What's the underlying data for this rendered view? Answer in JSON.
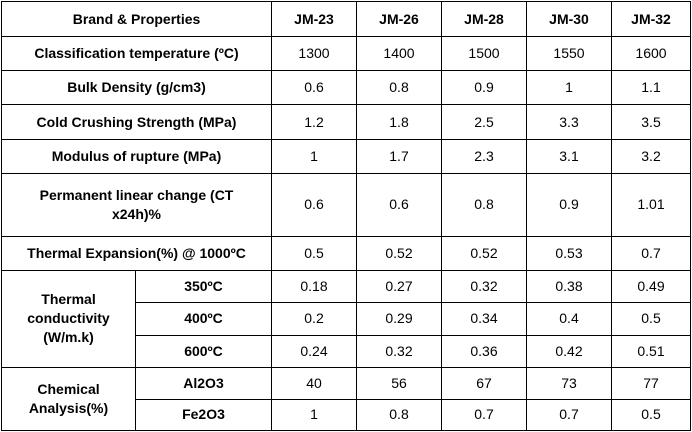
{
  "header": {
    "label": "Brand & Properties",
    "brands": [
      "JM-23",
      "JM-26",
      "JM-28",
      "JM-30",
      "JM-32"
    ]
  },
  "rows": [
    {
      "label": "Classification temperature (ºC)",
      "values": [
        "1300",
        "1400",
        "1500",
        "1550",
        "1600"
      ]
    },
    {
      "label": "Bulk Density (g/cm3)",
      "values": [
        "0.6",
        "0.8",
        "0.9",
        "1",
        "1.1"
      ]
    },
    {
      "label": "Cold Crushing Strength (MPa)",
      "values": [
        "1.2",
        "1.8",
        "2.5",
        "3.3",
        "3.5"
      ]
    },
    {
      "label": "Modulus of rupture (MPa)",
      "values": [
        "1",
        "1.7",
        "2.3",
        "3.1",
        "3.2"
      ]
    },
    {
      "label_line1": "Permanent linear change (CT",
      "label_line2": "x24h)%",
      "values": [
        "0.6",
        "0.6",
        "0.8",
        "0.9",
        "1.01"
      ]
    },
    {
      "label": "Thermal Expansion(%) @ 1000ºC",
      "values": [
        "0.5",
        "0.52",
        "0.52",
        "0.53",
        "0.7"
      ]
    }
  ],
  "thermal": {
    "label_line1": "Thermal",
    "label_line2": "conductivity",
    "label_line3": "(W/m.k)",
    "rows": [
      {
        "temp": "350ºC",
        "values": [
          "0.18",
          "0.27",
          "0.32",
          "0.38",
          "0.49"
        ]
      },
      {
        "temp": "400ºC",
        "values": [
          "0.2",
          "0.29",
          "0.34",
          "0.4",
          "0.5"
        ]
      },
      {
        "temp": "600ºC",
        "values": [
          "0.24",
          "0.32",
          "0.36",
          "0.42",
          "0.51"
        ]
      }
    ]
  },
  "chemical": {
    "label_line1": "Chemical",
    "label_line2": "Analysis(%)",
    "rows": [
      {
        "component": "Al2O3",
        "values": [
          "40",
          "56",
          "67",
          "73",
          "77"
        ]
      },
      {
        "component": "Fe2O3",
        "values": [
          "1",
          "0.8",
          "0.7",
          "0.7",
          "0.5"
        ]
      }
    ]
  }
}
